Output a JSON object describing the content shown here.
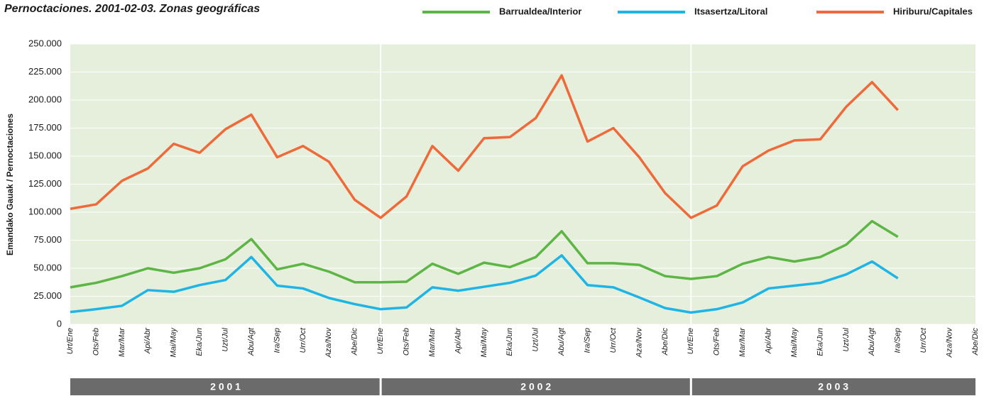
{
  "chart_data": {
    "type": "line",
    "title": "Pernoctaciones. 2001-02-03. Zonas geográficas",
    "y_label": "Emandako Gauak / Pernoctaciones",
    "categories": [
      "Urt/Ene",
      "Ots/Feb",
      "Mar/Mar",
      "Api/Abr",
      "Mai/May",
      "Eka/Jun",
      "Uzt/Jul",
      "Abu/Agt",
      "Ira/Sep",
      "Urr/Oct",
      "Aza/Nov",
      "Abe/Dic",
      "Urt/Ene",
      "Ots/Feb",
      "Mar/Mar",
      "Api/Abr",
      "Mai/May",
      "Eka/Jun",
      "Uzt/Jul",
      "Abu/Agt",
      "Ira/Sep",
      "Urr/Oct",
      "Aza/Nov",
      "Abe/Dic",
      "Urt/Ene",
      "Ots/Feb",
      "Mar/Mar",
      "Api/Abr",
      "Mai/May",
      "Eka/Jun",
      "Uzt/Jul",
      "Abu/Agt",
      "Ira/Sep",
      "Urr/Oct",
      "Aza/Nov",
      "Abe/Dic"
    ],
    "years": [
      "2 0 0 1",
      "2 0 0 2",
      "2 0 0 3"
    ],
    "series": [
      {
        "name": "Barrualdea/Interior",
        "color": "#5db545",
        "values": [
          33000,
          37000,
          43000,
          50000,
          46000,
          50000,
          58000,
          76000,
          49000,
          54000,
          47000,
          37500,
          37500,
          38000,
          54000,
          45000,
          55000,
          51000,
          60000,
          83000,
          54500,
          54500,
          53000,
          43000,
          40500,
          43000,
          54000,
          60000,
          56000,
          60000,
          71000,
          92000,
          78000,
          null,
          null,
          null
        ]
      },
      {
        "name": "Itsasertza/Litoral",
        "color": "#1eb4e6",
        "values": [
          11000,
          13500,
          16500,
          30500,
          29000,
          35000,
          39500,
          60000,
          34500,
          32000,
          23500,
          18000,
          13500,
          15000,
          33000,
          30000,
          33500,
          37000,
          43500,
          61500,
          35000,
          33000,
          24000,
          14500,
          10500,
          13500,
          19500,
          32000,
          34500,
          37000,
          44500,
          56000,
          41000,
          null,
          null,
          null
        ]
      },
      {
        "name": "Hiriburu/Capitales",
        "color": "#ee6a3a",
        "values": [
          103000,
          107000,
          128000,
          139000,
          161000,
          153000,
          174000,
          187000,
          149000,
          159000,
          145000,
          111000,
          95000,
          114000,
          159000,
          137000,
          166000,
          167000,
          184000,
          222000,
          163000,
          175000,
          149000,
          117000,
          95000,
          106000,
          141000,
          155000,
          164000,
          165000,
          194000,
          216000,
          191000,
          null,
          null,
          null
        ]
      }
    ],
    "ylim": [
      0,
      250000
    ],
    "yticks": [
      0,
      {
        "value": 25000,
        "label": "25.000"
      },
      {
        "value": 50000,
        "label": "50.000"
      },
      {
        "value": 75000,
        "label": "75.000"
      },
      {
        "value": 100000,
        "label": "100.000"
      },
      {
        "value": 125000,
        "label": "125.000"
      },
      {
        "value": 150000,
        "label": "150.000"
      },
      {
        "value": 175000,
        "label": "175.000"
      },
      {
        "value": 200000,
        "label": "200.000"
      },
      {
        "value": 225000,
        "label": "225.000"
      },
      {
        "value": 250000,
        "label": "250.000"
      }
    ],
    "grid": true
  }
}
